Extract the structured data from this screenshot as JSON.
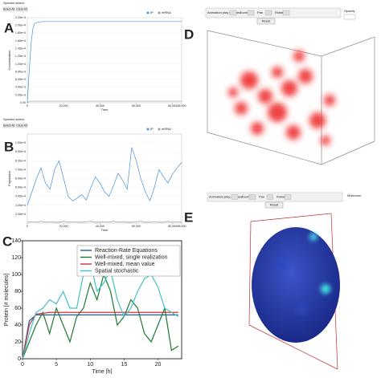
{
  "panel_labels": [
    "A",
    "B",
    "C",
    "D",
    "E"
  ],
  "chart_data": [
    {
      "type": "line",
      "header": "Species select:",
      "buttons": [
        "Select All",
        "Clear All"
      ],
      "xlabel": "Time",
      "ylabel": "Concentration",
      "x": [
        0,
        1000,
        2000,
        3000,
        4000,
        6000,
        10000,
        20000,
        30000,
        40000,
        50000,
        60000,
        70000,
        80000,
        85000
      ],
      "series": [
        {
          "name": "IP",
          "color": "#4a90d9",
          "values": [
            0,
            8000,
            15000,
            19000,
            20500,
            20900,
            21000,
            21000,
            21000,
            21000,
            21000,
            21000,
            21000,
            21000,
            21000
          ]
        },
        {
          "name": "mRNA",
          "color": "#999999",
          "values": [
            0,
            300,
            400,
            400,
            400,
            400,
            400,
            400,
            400,
            400,
            400,
            400,
            400,
            400,
            400
          ]
        }
      ],
      "xlim": [
        0,
        85000
      ],
      "xticks": [
        0,
        {
          "value": 20000,
          "label": "20,000"
        },
        {
          "value": 40000,
          "label": "40,000"
        },
        {
          "value": 60000,
          "label": "60,000"
        },
        {
          "value": 80000,
          "label": "80,000"
        },
        {
          "value": 85000,
          "label": "85,000"
        }
      ],
      "ylim": [
        0,
        22000
      ],
      "yticks": [
        {
          "value": 0,
          "label": "0.00"
        },
        {
          "value": 2000,
          "label": "2.00e+3"
        },
        {
          "value": 4000,
          "label": "4.00e+3"
        },
        {
          "value": 6000,
          "label": "6.00e+3"
        },
        {
          "value": 8000,
          "label": "8.00e+3"
        },
        {
          "value": 10000,
          "label": "1.00e+4"
        },
        {
          "value": 12000,
          "label": "1.20e+4"
        },
        {
          "value": 14000,
          "label": "1.40e+4"
        },
        {
          "value": 16000,
          "label": "1.60e+4"
        },
        {
          "value": 18000,
          "label": "1.80e+4"
        },
        {
          "value": 20000,
          "label": "2.00e+4"
        },
        {
          "value": 22000,
          "label": "2.20e+4"
        }
      ],
      "grid": true
    },
    {
      "type": "line",
      "header": "Species select:",
      "buttons": [
        "Select All",
        "Clear All"
      ],
      "xlabel": "Time",
      "ylabel": "Population",
      "x": [
        0,
        2500,
        5000,
        7500,
        10000,
        12500,
        15000,
        17500,
        20000,
        22500,
        25000,
        27500,
        30000,
        32500,
        35000,
        37500,
        40000,
        42500,
        45000,
        47500,
        50000,
        52500,
        55000,
        57500,
        60000,
        62500,
        65000,
        67500,
        70000,
        72500,
        75000,
        77500,
        80000,
        82500,
        85000
      ],
      "series": [
        {
          "name": "IP",
          "color": "#4a90d9",
          "values": [
            30000,
            45000,
            60000,
            72000,
            55000,
            48000,
            70000,
            80000,
            60000,
            40000,
            35000,
            38000,
            42000,
            36000,
            50000,
            62000,
            55000,
            45000,
            40000,
            52000,
            66000,
            58000,
            48000,
            95000,
            80000,
            60000,
            45000,
            35000,
            50000,
            70000,
            62000,
            55000,
            65000,
            72000,
            78000
          ]
        },
        {
          "name": "mRNA",
          "color": "#999999",
          "values": [
            11000,
            11500,
            11000,
            12000,
            11000,
            11500,
            11000,
            11000,
            12000,
            11000,
            11500,
            11000,
            11000,
            11500,
            12000,
            11000,
            11000,
            11500,
            11000,
            12000,
            11000,
            11500,
            11000,
            11000,
            11500,
            12000,
            11000,
            11000,
            11500,
            11000,
            11000,
            12000,
            11000,
            11500,
            11000
          ]
        }
      ],
      "xlim": [
        0,
        85000
      ],
      "xticks": [
        0,
        {
          "value": 20000,
          "label": "20,000"
        },
        {
          "value": 40000,
          "label": "40,000"
        },
        {
          "value": 60000,
          "label": "60,000"
        },
        {
          "value": 80000,
          "label": "80,000"
        },
        {
          "value": 85000,
          "label": "85,000"
        }
      ],
      "ylim": [
        10000,
        110000
      ],
      "yticks": [
        {
          "value": 20000,
          "label": "2.00e+4"
        },
        {
          "value": 30000,
          "label": "3.00e+4"
        },
        {
          "value": 40000,
          "label": "4.00e+4"
        },
        {
          "value": 50000,
          "label": "5.00e+4"
        },
        {
          "value": 60000,
          "label": "6.00e+4"
        },
        {
          "value": 70000,
          "label": "7.00e+4"
        },
        {
          "value": 80000,
          "label": "8.00e+4"
        },
        {
          "value": 90000,
          "label": "9.00e+4"
        },
        {
          "value": 100000,
          "label": "1.00e+5"
        }
      ],
      "grid": true
    },
    {
      "type": "line",
      "xlabel": "Time [h]",
      "ylabel": "Protein [# molecules]",
      "x": [
        0,
        1,
        2,
        3,
        4,
        5,
        6,
        7,
        8,
        9,
        10,
        11,
        12,
        13,
        14,
        15,
        16,
        17,
        18,
        19,
        20,
        21,
        22,
        23
      ],
      "series": [
        {
          "name": "Reaction-Rate Equations",
          "color": "#1f5fa0",
          "values": [
            0,
            45,
            52,
            52,
            52,
            52,
            52,
            52,
            52,
            52,
            52,
            52,
            52,
            52,
            52,
            52,
            52,
            52,
            52,
            52,
            52,
            52,
            52,
            52
          ]
        },
        {
          "name": "Well-mixed, single realization",
          "color": "#1a7a2e",
          "values": [
            0,
            20,
            40,
            55,
            30,
            60,
            40,
            20,
            50,
            60,
            90,
            70,
            100,
            80,
            40,
            50,
            70,
            60,
            30,
            20,
            40,
            60,
            10,
            15
          ]
        },
        {
          "name": "Well-mixed, mean value",
          "color": "#d0313b",
          "values": [
            0,
            40,
            53,
            54,
            55,
            55,
            55,
            55,
            55,
            55,
            55,
            55,
            55,
            55,
            55,
            55,
            55,
            55,
            55,
            55,
            55,
            55,
            55,
            55
          ]
        },
        {
          "name": "Spatial stochastic",
          "color": "#3fc1c9",
          "values": [
            0,
            30,
            55,
            60,
            70,
            65,
            80,
            60,
            60,
            100,
            115,
            80,
            90,
            105,
            70,
            50,
            60,
            80,
            95,
            100,
            85,
            60,
            55,
            50
          ]
        }
      ],
      "xlim": [
        0,
        23.5
      ],
      "xticks": [
        0,
        5,
        10,
        15,
        20
      ],
      "ylim": [
        0,
        140
      ],
      "yticks": [
        0,
        20,
        40,
        60,
        80,
        100,
        120,
        140
      ],
      "grid": false,
      "legend": "upper-right"
    }
  ],
  "viewer_d": {
    "toolbar": [
      "Animation play stopped",
      "Zoom",
      "Pan",
      "Rotate"
    ],
    "reset": "Reset",
    "side": "Opacity"
  },
  "viewer_e": {
    "toolbar": [
      "Animation play stopped",
      "Zoom",
      "Pan",
      "Rotate"
    ],
    "reset": "Reset",
    "side": "Maximum"
  }
}
